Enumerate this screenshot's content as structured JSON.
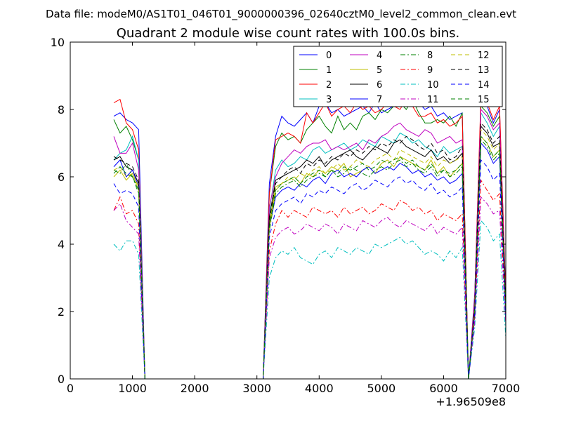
{
  "figure": {
    "suptitle": "Data file: modeM0/AS1T01_046T01_9000000396_02640cztM0_level2_common_clean.evt",
    "title": "Quadrant 2 module wise count rates with 100.0s bins.",
    "x_offset_label": "+1.96509e8"
  },
  "chart_data": {
    "type": "line",
    "title": "Quadrant 2 module wise count rates with 100.0s bins.",
    "xlabel": "",
    "ylabel": "",
    "x_offset": 196509000,
    "xlim": [
      0,
      7000
    ],
    "ylim": [
      0,
      10
    ],
    "xticks": [
      0,
      1000,
      2000,
      3000,
      4000,
      5000,
      6000,
      7000
    ],
    "yticks": [
      0,
      2,
      4,
      6,
      8,
      10
    ],
    "xtick_labels": [
      "0",
      "1000",
      "2000",
      "3000",
      "4000",
      "5000",
      "6000",
      "7000"
    ],
    "ytick_labels": [
      "0",
      "2",
      "4",
      "6",
      "8",
      "10"
    ],
    "grid": false,
    "legend_position": "top-right",
    "x": [
      700,
      800,
      900,
      1000,
      1100,
      1200,
      1300,
      3000,
      3100,
      3200,
      3300,
      3400,
      3500,
      3600,
      3700,
      3800,
      3900,
      4000,
      4100,
      4200,
      4300,
      4400,
      4500,
      4600,
      4700,
      4800,
      4900,
      5000,
      5100,
      5200,
      5300,
      5400,
      5500,
      5600,
      5700,
      5800,
      5900,
      6000,
      6100,
      6200,
      6300,
      6400,
      6500,
      6600,
      6700,
      6800,
      6900,
      7000
    ],
    "series": [
      {
        "name": "0",
        "color": "#0000ff",
        "dash": "solid",
        "values": [
          7.8,
          7.9,
          7.7,
          7.6,
          7.4,
          0,
          0,
          0,
          0,
          5.8,
          7.2,
          7.8,
          7.6,
          7.5,
          7.7,
          7.9,
          7.6,
          8.1,
          8.2,
          7.9,
          8.0,
          7.8,
          7.9,
          8.0,
          8.1,
          7.9,
          8.2,
          7.9,
          8.0,
          8.1,
          8.3,
          8.2,
          8.1,
          8.2,
          8.0,
          8.1,
          7.8,
          7.9,
          7.7,
          7.8,
          7.9,
          0,
          2.5,
          8.2,
          8.1,
          7.6,
          8.0,
          2.5
        ]
      },
      {
        "name": "1",
        "color": "#008000",
        "dash": "solid",
        "values": [
          7.7,
          7.3,
          7.5,
          7.1,
          6.5,
          0,
          0,
          0,
          0,
          5.5,
          6.9,
          7.3,
          7.1,
          7.2,
          7.0,
          7.4,
          7.6,
          7.8,
          7.5,
          7.3,
          7.8,
          7.4,
          7.6,
          7.4,
          7.8,
          7.9,
          7.7,
          8.0,
          7.9,
          8.1,
          8.2,
          8.0,
          8.3,
          7.9,
          7.6,
          7.6,
          7.7,
          7.6,
          7.8,
          7.5,
          7.9,
          0,
          2.3,
          8.1,
          7.9,
          7.5,
          7.8,
          2.3
        ]
      },
      {
        "name": "2",
        "color": "#ff0000",
        "dash": "solid",
        "values": [
          8.2,
          8.3,
          7.6,
          7.4,
          6.8,
          0,
          0,
          0,
          0,
          5.5,
          7.1,
          7.2,
          7.3,
          7.2,
          7.0,
          7.9,
          7.6,
          7.9,
          8.2,
          7.8,
          8.0,
          8.1,
          7.9,
          8.2,
          8.0,
          8.1,
          7.9,
          8.0,
          8.2,
          8.1,
          8.0,
          8.3,
          8.1,
          7.8,
          7.8,
          7.9,
          7.6,
          7.7,
          7.5,
          7.6,
          7.8,
          0,
          2.4,
          8.4,
          8.2,
          7.7,
          8.1,
          2.4
        ]
      },
      {
        "name": "3",
        "color": "#00bfbf",
        "dash": "solid",
        "values": [
          6.5,
          6.7,
          6.8,
          7.2,
          6.5,
          0,
          0,
          0,
          0,
          5.0,
          6.2,
          6.5,
          6.3,
          6.4,
          6.6,
          6.5,
          6.8,
          6.9,
          6.7,
          6.8,
          6.9,
          7.0,
          6.8,
          6.9,
          7.1,
          7.0,
          6.9,
          7.2,
          7.1,
          7.0,
          7.3,
          7.2,
          7.0,
          7.1,
          6.9,
          6.8,
          6.6,
          6.9,
          6.7,
          6.8,
          6.9,
          0,
          2.2,
          7.9,
          7.6,
          7.2,
          7.5,
          1.5
        ]
      },
      {
        "name": "4",
        "color": "#bf00bf",
        "dash": "solid",
        "values": [
          7.2,
          6.7,
          6.7,
          7.0,
          6.2,
          0,
          0,
          0,
          0,
          5.1,
          6.0,
          6.4,
          6.6,
          6.8,
          6.7,
          6.9,
          7.0,
          7.0,
          7.1,
          6.8,
          6.9,
          6.8,
          6.9,
          7.0,
          6.8,
          7.1,
          7.0,
          7.2,
          7.3,
          7.5,
          7.6,
          7.4,
          7.3,
          7.2,
          7.4,
          7.3,
          7.0,
          7.1,
          7.2,
          7.0,
          7.1,
          0,
          2.3,
          8.0,
          7.8,
          7.4,
          7.6,
          2.2
        ]
      },
      {
        "name": "5",
        "color": "#bfbf00",
        "dash": "solid",
        "values": [
          6.0,
          6.2,
          5.9,
          6.1,
          5.6,
          0,
          0,
          0,
          0,
          4.6,
          5.7,
          5.8,
          5.9,
          6.0,
          5.8,
          6.1,
          6.0,
          6.2,
          6.1,
          6.3,
          6.2,
          6.4,
          6.0,
          6.1,
          6.2,
          6.3,
          6.1,
          6.4,
          6.5,
          6.3,
          6.6,
          6.5,
          6.4,
          6.3,
          6.2,
          6.5,
          6.1,
          6.3,
          6.0,
          6.2,
          6.4,
          0,
          2.0,
          7.2,
          7.0,
          6.6,
          6.8,
          2.0
        ]
      },
      {
        "name": "6",
        "color": "#000000",
        "dash": "solid",
        "values": [
          6.5,
          6.6,
          6.3,
          6.2,
          5.8,
          0,
          0,
          0,
          0,
          4.8,
          5.9,
          6.0,
          6.1,
          6.2,
          6.3,
          6.5,
          6.4,
          6.6,
          6.3,
          6.5,
          6.6,
          6.7,
          6.8,
          6.6,
          6.5,
          6.7,
          6.9,
          6.8,
          6.7,
          7.0,
          7.1,
          6.9,
          6.8,
          6.7,
          6.6,
          6.8,
          6.5,
          6.6,
          6.4,
          6.5,
          6.7,
          0,
          2.1,
          7.5,
          7.3,
          6.9,
          7.0,
          2.1
        ]
      },
      {
        "name": "7",
        "color": "#0000ff",
        "dash": "solid",
        "values": [
          6.3,
          6.5,
          6.0,
          6.2,
          5.7,
          0,
          0,
          0,
          0,
          4.5,
          5.4,
          5.6,
          5.7,
          5.6,
          5.8,
          5.7,
          5.9,
          6.0,
          5.8,
          6.1,
          6.2,
          6.0,
          6.1,
          6.0,
          6.2,
          6.3,
          6.1,
          6.2,
          6.3,
          6.2,
          6.4,
          6.3,
          6.1,
          6.2,
          6.0,
          6.1,
          5.9,
          6.0,
          5.8,
          5.9,
          6.1,
          0,
          2.0,
          7.0,
          6.8,
          6.4,
          6.6,
          1.9
        ]
      },
      {
        "name": "8",
        "color": "#008000",
        "dash": "dashdot",
        "values": [
          6.2,
          6.1,
          6.4,
          6.0,
          5.5,
          0,
          0,
          0,
          0,
          4.4,
          5.5,
          5.7,
          5.8,
          5.9,
          5.7,
          5.9,
          6.0,
          6.1,
          6.0,
          6.2,
          6.0,
          6.1,
          6.3,
          6.2,
          6.1,
          6.0,
          6.2,
          6.3,
          6.2,
          6.4,
          6.5,
          6.3,
          6.4,
          6.2,
          6.1,
          6.3,
          6.0,
          6.2,
          6.0,
          6.1,
          6.3,
          0,
          2.0,
          7.1,
          6.9,
          6.5,
          6.7,
          2.0
        ]
      },
      {
        "name": "9",
        "color": "#ff0000",
        "dash": "dashdot",
        "values": [
          5.0,
          5.4,
          4.9,
          5.0,
          4.6,
          0,
          0,
          0,
          0,
          3.8,
          4.6,
          5.0,
          4.8,
          5.0,
          4.9,
          4.8,
          5.1,
          5.0,
          4.9,
          5.0,
          4.8,
          5.1,
          4.9,
          5.0,
          5.1,
          4.9,
          5.0,
          5.2,
          5.1,
          5.0,
          5.3,
          5.2,
          5.0,
          5.1,
          4.9,
          5.0,
          4.7,
          4.9,
          4.8,
          4.7,
          4.9,
          0,
          1.8,
          5.9,
          5.6,
          5.3,
          5.5,
          1.8
        ]
      },
      {
        "name": "10",
        "color": "#00bfbf",
        "dash": "dashdot",
        "values": [
          4.0,
          3.8,
          4.1,
          4.1,
          3.7,
          0,
          0,
          0,
          0,
          3.0,
          3.6,
          3.8,
          3.7,
          3.9,
          3.6,
          3.5,
          3.4,
          3.7,
          3.8,
          3.6,
          3.9,
          3.8,
          3.7,
          3.9,
          3.8,
          3.7,
          4.0,
          3.9,
          4.0,
          4.1,
          4.2,
          4.0,
          4.1,
          3.9,
          3.7,
          3.8,
          3.7,
          3.5,
          3.8,
          3.6,
          3.9,
          0,
          1.5,
          4.7,
          4.5,
          4.1,
          4.3,
          1.2
        ]
      },
      {
        "name": "11",
        "color": "#bf00bf",
        "dash": "dashdot",
        "values": [
          5.0,
          5.2,
          4.7,
          4.5,
          4.3,
          0,
          0,
          0,
          0,
          3.6,
          4.2,
          4.4,
          4.5,
          4.3,
          4.4,
          4.6,
          4.5,
          4.4,
          4.6,
          4.5,
          4.3,
          4.6,
          4.5,
          4.4,
          4.7,
          4.6,
          4.5,
          4.7,
          4.8,
          4.6,
          4.5,
          4.7,
          4.6,
          4.5,
          4.4,
          4.6,
          4.3,
          4.5,
          4.4,
          4.3,
          4.5,
          0,
          1.7,
          5.4,
          5.2,
          4.9,
          5.0,
          1.6
        ]
      },
      {
        "name": "12",
        "color": "#bfbf00",
        "dash": "dashed",
        "values": [
          6.2,
          6.3,
          6.0,
          6.1,
          5.7,
          0,
          0,
          0,
          0,
          4.5,
          5.6,
          5.8,
          6.0,
          5.9,
          6.1,
          6.0,
          6.2,
          6.3,
          6.1,
          6.2,
          6.4,
          6.2,
          6.3,
          6.5,
          6.4,
          6.3,
          6.5,
          6.6,
          6.7,
          6.5,
          6.8,
          6.7,
          6.6,
          6.5,
          6.4,
          6.6,
          6.3,
          6.5,
          6.4,
          6.5,
          6.6,
          0,
          2.1,
          7.4,
          7.2,
          6.8,
          7.0,
          2.0
        ]
      },
      {
        "name": "13",
        "color": "#000000",
        "dash": "dashed",
        "values": [
          6.6,
          6.5,
          6.4,
          6.3,
          5.9,
          0,
          0,
          0,
          0,
          4.7,
          5.8,
          6.0,
          6.2,
          6.3,
          6.1,
          6.4,
          6.3,
          6.5,
          6.4,
          6.6,
          6.5,
          6.7,
          6.6,
          6.8,
          6.7,
          6.9,
          6.8,
          7.0,
          6.9,
          7.1,
          7.0,
          7.2,
          7.1,
          6.9,
          6.8,
          7.0,
          6.7,
          6.8,
          6.5,
          6.6,
          6.9,
          0,
          2.1,
          7.6,
          7.4,
          7.0,
          7.2,
          2.1
        ]
      },
      {
        "name": "14",
        "color": "#0000ff",
        "dash": "dashed",
        "values": [
          5.8,
          5.5,
          5.6,
          5.5,
          5.1,
          0,
          0,
          0,
          0,
          4.2,
          5.0,
          5.2,
          5.3,
          5.4,
          5.2,
          5.5,
          5.4,
          5.6,
          5.5,
          5.7,
          5.6,
          5.5,
          5.7,
          5.8,
          5.6,
          5.7,
          5.9,
          5.8,
          5.7,
          5.9,
          6.0,
          5.8,
          5.9,
          5.7,
          5.6,
          5.8,
          5.5,
          5.6,
          5.4,
          5.5,
          5.7,
          0,
          1.9,
          6.5,
          6.3,
          5.9,
          6.1,
          1.8
        ]
      },
      {
        "name": "15",
        "color": "#008000",
        "dash": "dashed",
        "values": [
          6.1,
          6.3,
          6.1,
          6.0,
          5.6,
          0,
          0,
          0,
          0,
          4.5,
          5.6,
          5.8,
          5.9,
          6.0,
          5.8,
          6.0,
          6.1,
          6.2,
          6.0,
          6.2,
          6.1,
          6.3,
          6.2,
          6.3,
          6.4,
          6.2,
          6.3,
          6.5,
          6.4,
          6.5,
          6.6,
          6.4,
          6.5,
          6.3,
          6.2,
          6.4,
          6.1,
          6.2,
          6.1,
          6.2,
          6.4,
          0,
          2.0,
          7.2,
          7.0,
          6.6,
          6.8,
          2.0
        ]
      }
    ]
  }
}
